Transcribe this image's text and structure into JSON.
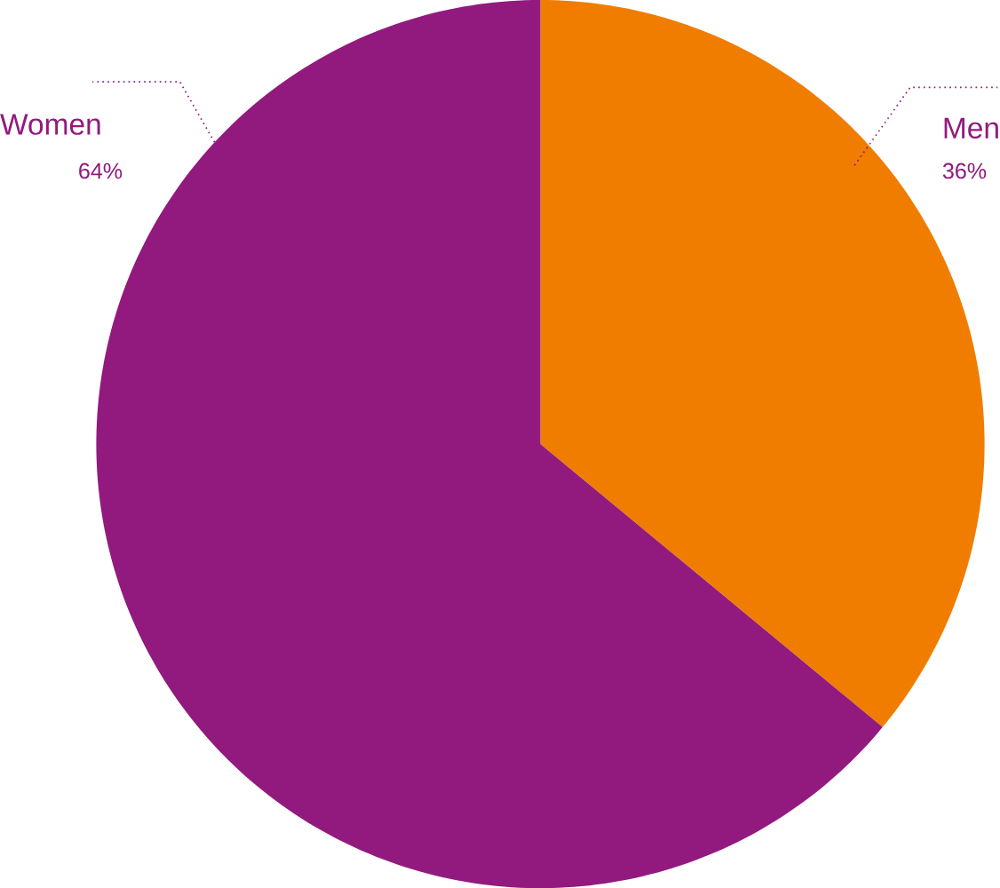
{
  "chart_data": {
    "type": "pie",
    "categories": [
      "Men",
      "Women"
    ],
    "values": [
      36,
      64
    ],
    "colors": [
      "#f07d00",
      "#921a7e"
    ],
    "value_labels": [
      "36%",
      "64%"
    ]
  }
}
